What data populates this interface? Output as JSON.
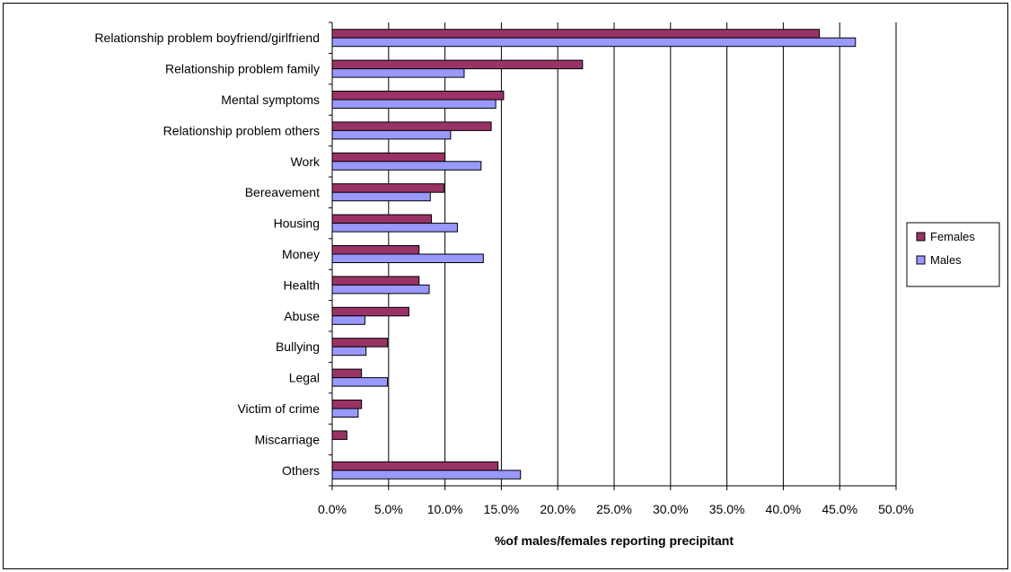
{
  "chart_data": {
    "type": "bar",
    "orientation": "horizontal",
    "categories": [
      "Relationship problem boyfriend/girlfriend",
      "Relationship problem family",
      "Mental symptoms",
      "Relationship problem others",
      "Work",
      "Bereavement",
      "Housing",
      "Money",
      "Health",
      "Abuse",
      "Bullying",
      "Legal",
      "Victim of crime",
      "Miscarriage",
      "Others"
    ],
    "series": [
      {
        "name": "Females",
        "color": "#993366",
        "values": [
          43.2,
          22.2,
          15.2,
          14.1,
          10.0,
          9.9,
          8.8,
          7.7,
          7.7,
          6.8,
          4.9,
          2.6,
          2.6,
          1.3,
          14.7
        ]
      },
      {
        "name": "Males",
        "color": "#9999FF",
        "values": [
          46.4,
          11.7,
          14.5,
          10.5,
          13.2,
          8.7,
          11.1,
          13.4,
          8.6,
          2.9,
          3.0,
          4.9,
          2.3,
          0.0,
          16.7
        ]
      }
    ],
    "xlabel": "%of males/females reporting precipitant",
    "ylabel": "",
    "xlim": [
      0,
      50
    ],
    "xticks": [
      "0.0%",
      "5.0%",
      "10.0%",
      "15.0%",
      "20.0%",
      "25.0%",
      "30.0%",
      "35.0%",
      "40.0%",
      "45.0%",
      "50.0%"
    ],
    "grid": "vertical",
    "legend": "right"
  }
}
